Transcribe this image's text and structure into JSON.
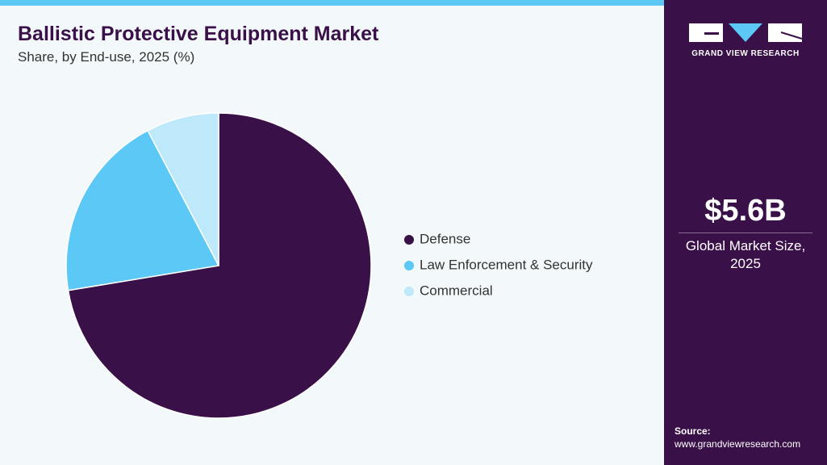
{
  "chart_data": {
    "type": "pie",
    "title": "Ballistic Protective Equipment Market",
    "subtitle": "Share, by End-use, 2025 (%)",
    "categories": [
      "Defense",
      "Law Enforcement & Security",
      "Commercial"
    ],
    "values": [
      72.4,
      19.9,
      7.7
    ],
    "colors": [
      "#3a1048",
      "#5bc8f5",
      "#bde9fb"
    ]
  },
  "sidebar": {
    "brand": "GRAND VIEW RESEARCH",
    "market_size": "$5.6B",
    "market_size_label": "Global Market Size, 2025",
    "source_label": "Source:",
    "source_url": "www.grandviewresearch.com"
  }
}
